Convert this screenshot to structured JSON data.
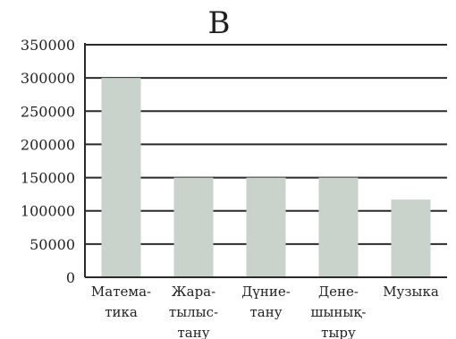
{
  "colors": {
    "bar": "#c9d2cb",
    "grid": "#2a2a2a",
    "axis": "#2a2a2a",
    "text": "#222222"
  },
  "chart_data": {
    "type": "bar",
    "title": "B",
    "xlabel": "",
    "ylabel": "",
    "ylim": [
      0,
      350000
    ],
    "yticks": [
      {
        "value": 0,
        "label": "0"
      },
      {
        "value": 50000,
        "label": "50000"
      },
      {
        "value": 100000,
        "label": "100000"
      },
      {
        "value": 150000,
        "label": "150000"
      },
      {
        "value": 200000,
        "label": "200000"
      },
      {
        "value": 250000,
        "label": "250000"
      },
      {
        "value": 300000,
        "label": "300000"
      },
      {
        "value": 350000,
        "label": "350000"
      }
    ],
    "grid": true,
    "categories": [
      {
        "label": "Математика",
        "lines": [
          "Матема-",
          "тика"
        ]
      },
      {
        "label": "Жаратылыстану",
        "lines": [
          "Жара-",
          "тылыс-",
          "тану"
        ]
      },
      {
        "label": "Дүниетану",
        "lines": [
          "Дүние-",
          "тану"
        ]
      },
      {
        "label": "Денешынықтыру",
        "lines": [
          "Дене-",
          "шынық-",
          "тыру"
        ]
      },
      {
        "label": "Музыка",
        "lines": [
          "Музыка"
        ]
      }
    ],
    "values": [
      300000,
      150000,
      150000,
      150000,
      117000
    ]
  }
}
